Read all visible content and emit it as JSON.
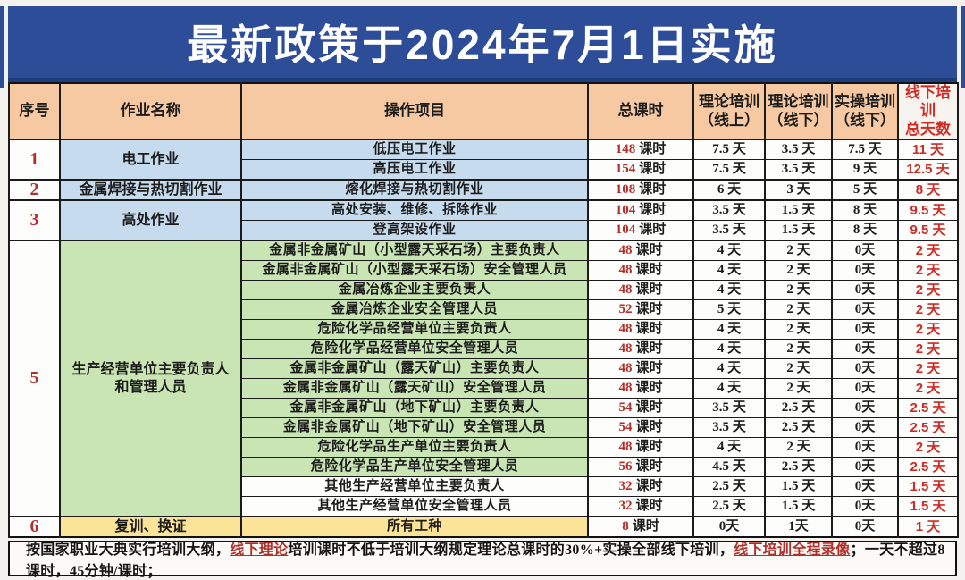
{
  "title": "最新政策于2024年7月1日实施",
  "colors": {
    "title_bg": "#2d4d98",
    "header_bg": "#f6c9a2",
    "blue": "#c6dcee",
    "green": "#c9e5b4",
    "yellow": "#fbe398",
    "dark_red": "#b2302b",
    "bright_red": "#cf2a24"
  },
  "table": {
    "headers": [
      "序号",
      "作业名称",
      "操作项目",
      "总课时",
      "理论培训\n（线上）",
      "理论培训\n（线下）",
      "实操培训\n（线下）",
      "线下培训\n总天数"
    ],
    "hours_unit": "课时",
    "groups": [
      {
        "no": "1",
        "name": "电工作业",
        "color": "blue",
        "rows": [
          {
            "item": "低压电工作业",
            "hours": "148",
            "online": "7.5 天",
            "offline": "3.5 天",
            "practical": "7.5 天",
            "total_days": "11 天"
          },
          {
            "item": "高压电工作业",
            "hours": "154",
            "online": "7.5 天",
            "offline": "3.5 天",
            "practical": "9 天",
            "total_days": "12.5 天"
          }
        ]
      },
      {
        "no": "2",
        "name": "金属焊接与热切割作业",
        "color": "blue",
        "rows": [
          {
            "item": "熔化焊接与热切割作业",
            "hours": "108",
            "online": "6 天",
            "offline": "3 天",
            "practical": "5 天",
            "total_days": "8 天"
          }
        ]
      },
      {
        "no": "3",
        "name": "高处作业",
        "color": "blue",
        "rows": [
          {
            "item": "高处安装、维修、拆除作业",
            "hours": "104",
            "online": "3.5 天",
            "offline": "1.5 天",
            "practical": "8 天",
            "total_days": "9.5 天"
          },
          {
            "item": "登高架设作业",
            "hours": "104",
            "online": "3.5 天",
            "offline": "1.5 天",
            "practical": "8 天",
            "total_days": "9.5 天"
          }
        ]
      },
      {
        "no": "5",
        "name": "生产经营单位主要负责人\n和管理人员",
        "color": "green",
        "rows": [
          {
            "item": "金属非金属矿山（小型露天采石场）主要负责人",
            "hours": "48",
            "online": "4 天",
            "offline": "2 天",
            "practical": "0天",
            "total_days": "2 天"
          },
          {
            "item": "金属非金属矿山（小型露天采石场）安全管理人员",
            "hours": "48",
            "online": "4 天",
            "offline": "2 天",
            "practical": "0天",
            "total_days": "2 天"
          },
          {
            "item": "金属冶炼企业主要负责人",
            "hours": "48",
            "online": "4 天",
            "offline": "2 天",
            "practical": "0天",
            "total_days": "2 天"
          },
          {
            "item": "金属冶炼企业安全管理人员",
            "hours": "52",
            "online": "5 天",
            "offline": "2 天",
            "practical": "0天",
            "total_days": "2 天"
          },
          {
            "item": "危险化学品经营单位主要负责人",
            "hours": "48",
            "online": "4 天",
            "offline": "2 天",
            "practical": "0天",
            "total_days": "2 天"
          },
          {
            "item": "危险化学品经营单位安全管理人员",
            "hours": "48",
            "online": "4 天",
            "offline": "2 天",
            "practical": "0天",
            "total_days": "2 天"
          },
          {
            "item": "金属非金属矿山（露天矿山）主要负责人",
            "hours": "48",
            "online": "4 天",
            "offline": "2 天",
            "practical": "0天",
            "total_days": "2 天"
          },
          {
            "item": "金属非金属矿山（露天矿山）安全管理人员",
            "hours": "48",
            "online": "4 天",
            "offline": "2 天",
            "practical": "0天",
            "total_days": "2 天"
          },
          {
            "item": "金属非金属矿山（地下矿山）主要负责人",
            "hours": "54",
            "online": "3.5 天",
            "offline": "2.5 天",
            "practical": "0天",
            "total_days": "2.5 天"
          },
          {
            "item": "金属非金属矿山（地下矿山）安全管理人员",
            "hours": "54",
            "online": "3.5 天",
            "offline": "2.5 天",
            "practical": "0天",
            "total_days": "2.5 天"
          },
          {
            "item": "危险化学品生产单位主要负责人",
            "hours": "48",
            "online": "4 天",
            "offline": "2 天",
            "practical": "0天",
            "total_days": "2 天"
          },
          {
            "item": "危险化学品生产单位安全管理人员",
            "hours": "56",
            "online": "4.5 天",
            "offline": "2.5 天",
            "practical": "0天",
            "total_days": "2.5 天"
          },
          {
            "item": "其他生产经营单位主要负责人",
            "hours": "32",
            "online": "2.5 天",
            "offline": "1.5 天",
            "practical": "0天",
            "total_days": "1.5 天",
            "item_bg": "white"
          },
          {
            "item": "其他生产经营单位安全管理人员",
            "hours": "32",
            "online": "2.5 天",
            "offline": "1.5 天",
            "practical": "0天",
            "total_days": "1.5 天",
            "item_bg": "white"
          }
        ]
      },
      {
        "no": "6",
        "name": "复训、换证",
        "color": "yellow",
        "rows": [
          {
            "item": "所有工种",
            "hours": "8",
            "online": "0天",
            "offline": "1天",
            "practical": "0天",
            "total_days": "1 天"
          }
        ]
      }
    ]
  },
  "footer": {
    "segments": [
      {
        "text": "按国家职业大典实行培训大纲，",
        "style": "normal"
      },
      {
        "text": "线下理论",
        "style": "red-underline"
      },
      {
        "text": "培训课时不低于培训大纲规定理论总课时的30%+实操全部线下培训，",
        "style": "normal"
      },
      {
        "text": "线下培训全程录像",
        "style": "red-underline"
      },
      {
        "text": "；一天不超过8课时，45分钟/课时；",
        "style": "normal"
      }
    ]
  }
}
